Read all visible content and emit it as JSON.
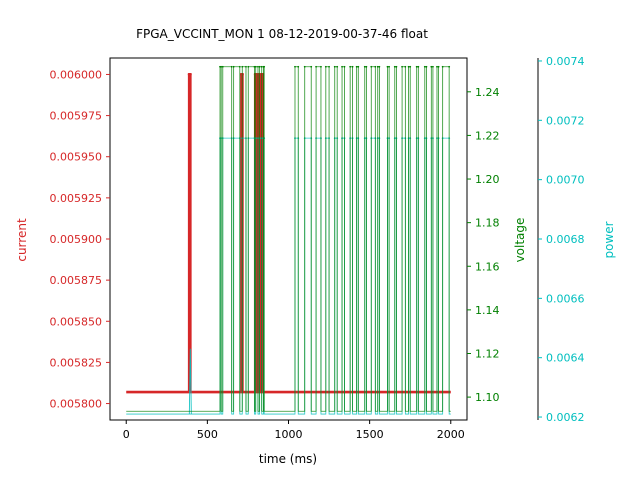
{
  "chart_data": {
    "type": "line",
    "title": "FPGA_VCCINT_MON   1   08-12-2019-00-37-46   float",
    "xlabel": "time (ms)",
    "xlim": [
      -100,
      2100
    ],
    "xticks": [
      0,
      500,
      1000,
      1500,
      2000
    ],
    "axes": [
      {
        "name": "current",
        "side": "left",
        "color": "#d62728",
        "ylim": [
          0.00579,
          0.00601
        ],
        "ticks": [
          0.0058,
          0.005825,
          0.00585,
          0.005875,
          0.0059,
          0.005925,
          0.00595,
          0.005975,
          0.006
        ],
        "tick_labels": [
          "0.005800",
          "0.005825",
          "0.005850",
          "0.005875",
          "0.005900",
          "0.005925",
          "0.005950",
          "0.005975",
          "0.006000"
        ]
      },
      {
        "name": "voltage",
        "side": "right",
        "color": "#008000",
        "ylim": [
          1.0895,
          1.2555
        ],
        "ticks": [
          1.1,
          1.12,
          1.14,
          1.16,
          1.18,
          1.2,
          1.22,
          1.24
        ],
        "tick_labels": [
          "1.10",
          "1.12",
          "1.14",
          "1.16",
          "1.18",
          "1.20",
          "1.22",
          "1.24"
        ]
      },
      {
        "name": "power",
        "side": "right-outer",
        "color": "#00bfbf",
        "ylim": [
          0.00619,
          0.00741
        ],
        "ticks": [
          0.0062,
          0.0064,
          0.0066,
          0.0068,
          0.007,
          0.0072,
          0.0074
        ],
        "tick_labels": [
          "0.0062",
          "0.0064",
          "0.0066",
          "0.0068",
          "0.0070",
          "0.0072",
          "0.0074"
        ]
      }
    ],
    "series": [
      {
        "name": "current",
        "axis": 0,
        "color": "#d62728",
        "low": 0.005807,
        "high": 0.006,
        "high_intervals": [
          [
            388,
            395
          ],
          [
            710,
            716
          ],
          [
            795,
            803
          ],
          [
            818,
            822
          ],
          [
            835,
            842
          ]
        ]
      },
      {
        "name": "voltage",
        "axis": 1,
        "color": "#008000",
        "low": 1.0935,
        "high": 1.2515,
        "high_intervals": [
          [
            578,
            585
          ],
          [
            595,
            650
          ],
          [
            662,
            700
          ],
          [
            715,
            738
          ],
          [
            752,
            790
          ],
          [
            798,
            812
          ],
          [
            822,
            835
          ],
          [
            846,
            850
          ],
          [
            1040,
            1060
          ],
          [
            1100,
            1140
          ],
          [
            1170,
            1200
          ],
          [
            1230,
            1250
          ],
          [
            1285,
            1300
          ],
          [
            1330,
            1345
          ],
          [
            1380,
            1395
          ],
          [
            1420,
            1430
          ],
          [
            1470,
            1480
          ],
          [
            1510,
            1535
          ],
          [
            1550,
            1560
          ],
          [
            1610,
            1620
          ],
          [
            1655,
            1665
          ],
          [
            1700,
            1720
          ],
          [
            1740,
            1750
          ],
          [
            1790,
            1800
          ],
          [
            1840,
            1850
          ],
          [
            1880,
            1890
          ],
          [
            1915,
            1925
          ],
          [
            1950,
            1990
          ]
        ]
      },
      {
        "name": "power",
        "axis": 2,
        "color": "#00bfbf",
        "low": 0.00621,
        "high": 0.00714,
        "high_intervals": [
          [
            578,
            585
          ],
          [
            595,
            650
          ],
          [
            662,
            700
          ],
          [
            715,
            738
          ],
          [
            752,
            790
          ],
          [
            798,
            812
          ],
          [
            822,
            835
          ],
          [
            846,
            850
          ],
          [
            1040,
            1060
          ],
          [
            1100,
            1140
          ],
          [
            1170,
            1200
          ],
          [
            1230,
            1250
          ],
          [
            1285,
            1300
          ],
          [
            1330,
            1345
          ],
          [
            1380,
            1395
          ],
          [
            1420,
            1430
          ],
          [
            1470,
            1480
          ],
          [
            1510,
            1535
          ],
          [
            1550,
            1560
          ],
          [
            1610,
            1620
          ],
          [
            1655,
            1665
          ],
          [
            1700,
            1720
          ],
          [
            1740,
            1750
          ],
          [
            1790,
            1800
          ],
          [
            1840,
            1850
          ],
          [
            1880,
            1890
          ],
          [
            1915,
            1925
          ],
          [
            1950,
            1990
          ]
        ],
        "spike": {
          "x": 395,
          "value": 0.00643
        }
      }
    ],
    "xrange": [
      0,
      2000
    ],
    "grid": false,
    "legend": "none"
  }
}
